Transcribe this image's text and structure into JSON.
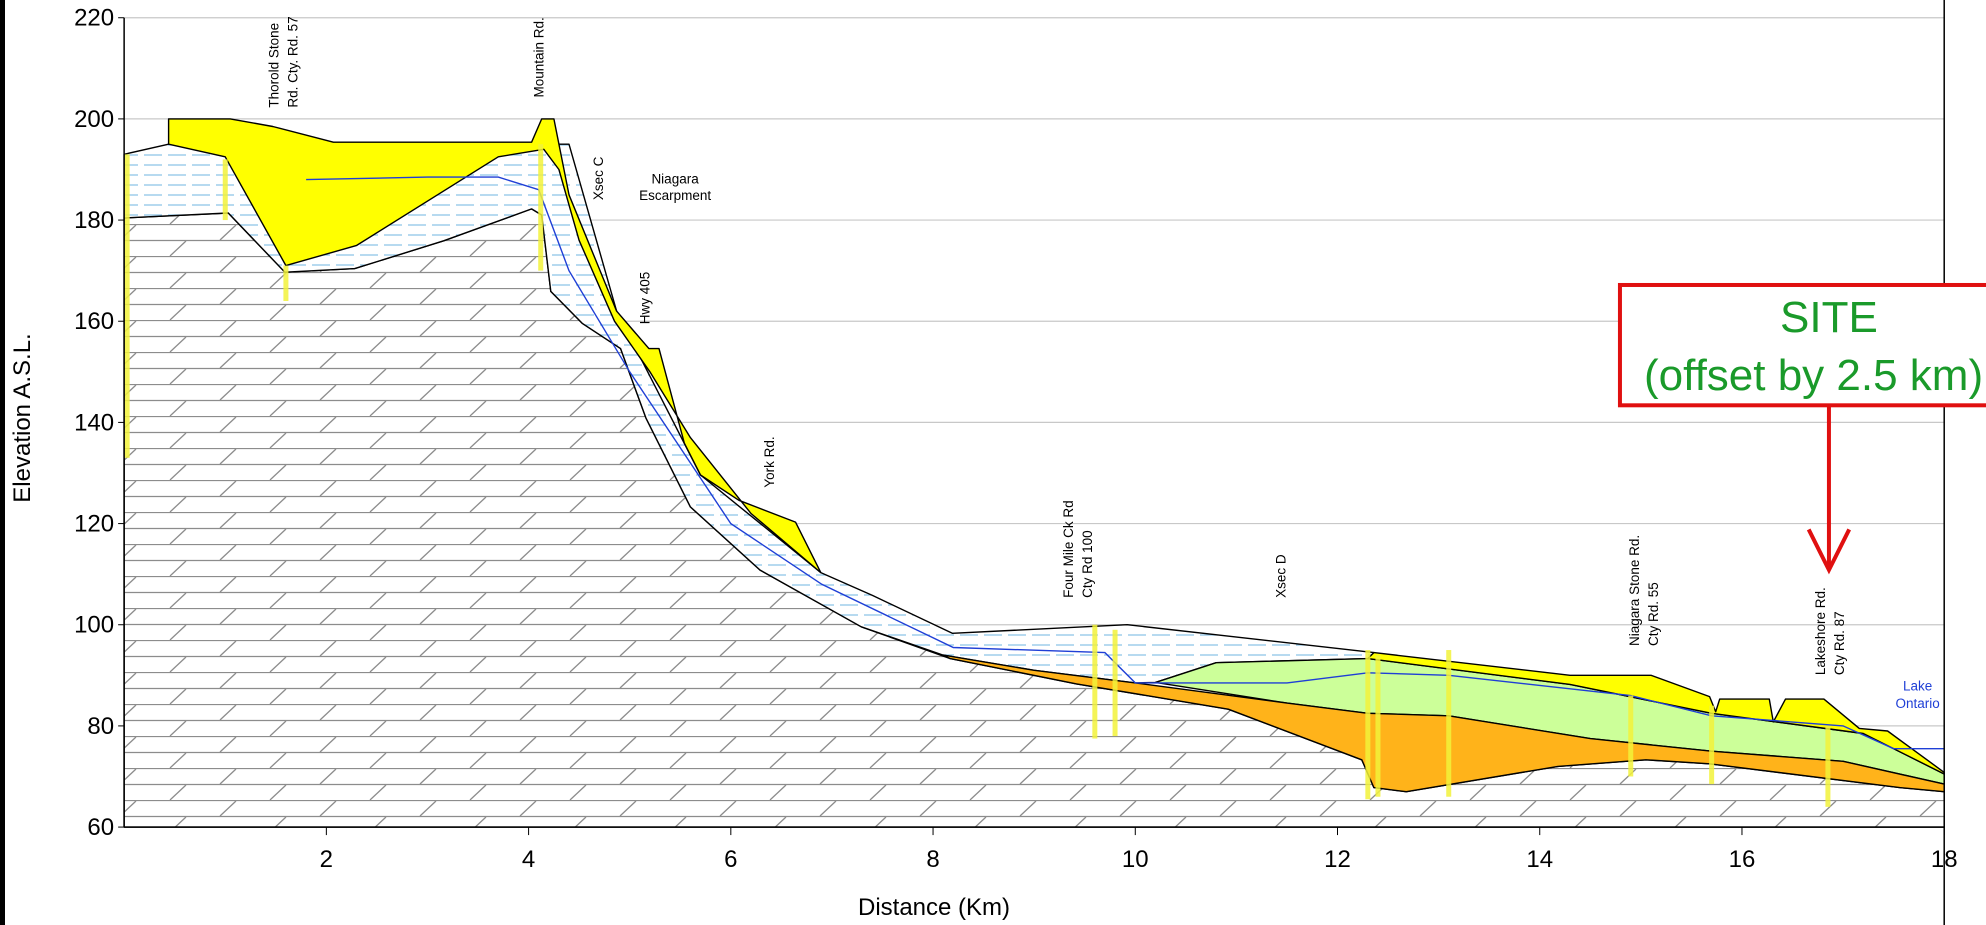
{
  "chart_data": {
    "type": "cross-section",
    "xlabel": "Distance  (Km)",
    "ylabel": "Elevation A.S.L.",
    "xlim": [
      0,
      18
    ],
    "ylim": [
      60,
      220
    ],
    "xticks": [
      2,
      4,
      6,
      8,
      10,
      12,
      14,
      16,
      18
    ],
    "yticks": [
      60,
      80,
      100,
      120,
      140,
      160,
      180,
      200,
      220
    ],
    "grid": true,
    "units": [
      {
        "color": "#ffffff",
        "hatch": "#8c8c8c",
        "x": [
          0,
          1.03,
          1.59,
          2.28,
          3.16,
          4.03,
          4.13,
          4.22,
          4.53,
          4.91,
          5.16,
          5.6,
          6.29,
          7.29,
          8.17,
          9.42,
          10.92,
          12.24,
          12.36,
          12.68,
          14.18,
          15.05,
          15.68,
          17.56,
          18,
          18,
          0
        ],
        "values": [
          180.4,
          181.4,
          169.7,
          170.4,
          175.9,
          182.2,
          181,
          165.9,
          159.6,
          154.6,
          140.9,
          123.3,
          110.8,
          99.6,
          93.3,
          88.3,
          83.3,
          73.3,
          67.8,
          67,
          72,
          73.3,
          72.5,
          67.8,
          67,
          60,
          60
        ]
      },
      {
        "color": "#ffffff",
        "hatch": "#8cc4e8",
        "x": [
          0,
          0.44,
          4.4,
          4.87,
          5.7,
          6.89,
          7.4,
          8.19,
          9.92,
          12.36,
          12.3,
          10.8,
          10.2,
          10.0,
          9.0,
          8.1,
          7.29,
          6.29,
          5.6,
          5.16,
          4.91,
          4.53,
          4.22,
          4.13,
          4.03,
          3.16,
          2.28,
          1.59,
          1.03,
          0
        ],
        "values": [
          193,
          195,
          195,
          162,
          129.6,
          110.3,
          105.8,
          98.3,
          100,
          94.5,
          93.3,
          92.5,
          88.6,
          88.5,
          91,
          94,
          99.6,
          110.8,
          123.3,
          140.9,
          154.6,
          159.6,
          165.9,
          181,
          182.2,
          175.9,
          170.4,
          169.7,
          181.4,
          180.4
        ]
      },
      {
        "color": "#ffff00",
        "hatch": null,
        "x": [
          0.44,
          0.44,
          1.05,
          1.47,
          2.07,
          4.03,
          4.13,
          4.25,
          4.4,
          4.87,
          5.19,
          5.29,
          5.54,
          5.7,
          6.08,
          6.64,
          6.89,
          6.2,
          5.6,
          5.2,
          4.85,
          4.5,
          4.3,
          4.15,
          3.7,
          2.3,
          1.6,
          1.0
        ],
        "values": [
          195,
          200,
          200,
          198.5,
          195.4,
          195.4,
          200,
          200,
          185,
          162,
          154.6,
          154.6,
          135.9,
          129.6,
          124.6,
          120.3,
          110.3,
          122,
          137,
          150,
          160,
          176,
          190,
          194,
          192.5,
          175,
          171,
          192.5
        ]
      },
      {
        "color": "#ccff99",
        "hatch": null,
        "x": [
          10.2,
          10.8,
          12.3,
          14.3,
          15.7,
          17.2,
          18,
          18,
          17,
          15.7,
          14.5,
          13.1,
          12.3,
          11.5
        ],
        "values": [
          88.6,
          92.5,
          93.3,
          88.2,
          82.5,
          78.5,
          70.5,
          68.5,
          73,
          75,
          77.5,
          82,
          82.5,
          84.5
        ]
      },
      {
        "color": "#ffb31a",
        "hatch": null,
        "x": [
          8.1,
          9.0,
          10.0,
          11.5,
          12.3,
          13.1,
          14.5,
          15.7,
          17,
          18,
          18,
          17.56,
          15.68,
          15.05,
          14.18,
          12.68,
          12.36,
          12.24,
          10.92,
          9.42,
          8.17
        ],
        "values": [
          94,
          91,
          88.5,
          84.5,
          82.5,
          82,
          77.5,
          75,
          73,
          68.5,
          67,
          67.8,
          72.5,
          73.3,
          72,
          67,
          67.8,
          73.3,
          83.3,
          88.3,
          93.3
        ]
      },
      {
        "color": "#ffff00",
        "hatch": null,
        "x": [
          12.36,
          14.3,
          15.1,
          15.68,
          15.74,
          15.78,
          16.27,
          16.31,
          16.43,
          16.81,
          17.16,
          17.44,
          18,
          18,
          17.2,
          15.7,
          14.3,
          12.3
        ],
        "values": [
          94.5,
          90,
          90,
          85.8,
          82.8,
          85.3,
          85.3,
          80.8,
          85.3,
          85.3,
          79.5,
          79,
          70.8,
          70.5,
          78.5,
          82.5,
          88.2,
          93.3
        ]
      }
    ],
    "series": [
      {
        "color": "#1f3fd6",
        "x": [
          1.8,
          3.0,
          3.7,
          4.1,
          4.4,
          5.0,
          6.0,
          6.9,
          8.2,
          9.7,
          10.0,
          11.5,
          12.3,
          13.1,
          14.9,
          15.7,
          17.0,
          17.5,
          18
        ],
        "values": [
          188,
          188.5,
          188.5,
          186,
          170,
          150,
          120,
          108,
          95.5,
          94.5,
          88.5,
          88.5,
          90.5,
          90,
          86,
          82,
          80,
          75.5,
          75.5
        ]
      }
    ],
    "boreholes": {
      "color": "#f2f23a",
      "x": [
        0.03,
        1.0,
        1.6,
        4.12,
        9.6,
        9.8,
        12.3,
        12.4,
        13.1,
        14.9,
        15.7,
        16.85
      ],
      "top": [
        193,
        192,
        171,
        195,
        100,
        99,
        95,
        94,
        95,
        86,
        84,
        80
      ],
      "bottom": [
        133,
        180,
        164,
        170,
        77.5,
        78,
        65.5,
        66,
        66,
        70,
        68.5,
        64
      ]
    },
    "annotations": [
      {
        "text": [
          "Thorold Stone",
          "Rd. Cty. Rd. 57"
        ]
      },
      {
        "text": [
          "Mountain Rd."
        ]
      },
      {
        "text": [
          "Xsec C"
        ]
      },
      {
        "text": [
          "Niagara",
          "Escarpment"
        ]
      },
      {
        "text": [
          "Hwy 405"
        ]
      },
      {
        "text": [
          "York Rd."
        ]
      },
      {
        "text": [
          "Four Mile Ck Rd",
          "Cty Rd 100"
        ]
      },
      {
        "text": [
          "Xsec D"
        ]
      },
      {
        "text": [
          "Niagara Stone Rd.",
          "Cty Rd. 55"
        ]
      },
      {
        "text": [
          "Lakeshore Rd.",
          "Cty Rd. 87"
        ]
      },
      {
        "text": [
          "Lake",
          "Ontario"
        ],
        "color": "#1f3fd6"
      },
      {
        "text": [
          "SITE",
          "(offset by 2.5 km)"
        ],
        "color": "#1a9a2a",
        "box_color": "#e01010"
      }
    ]
  }
}
